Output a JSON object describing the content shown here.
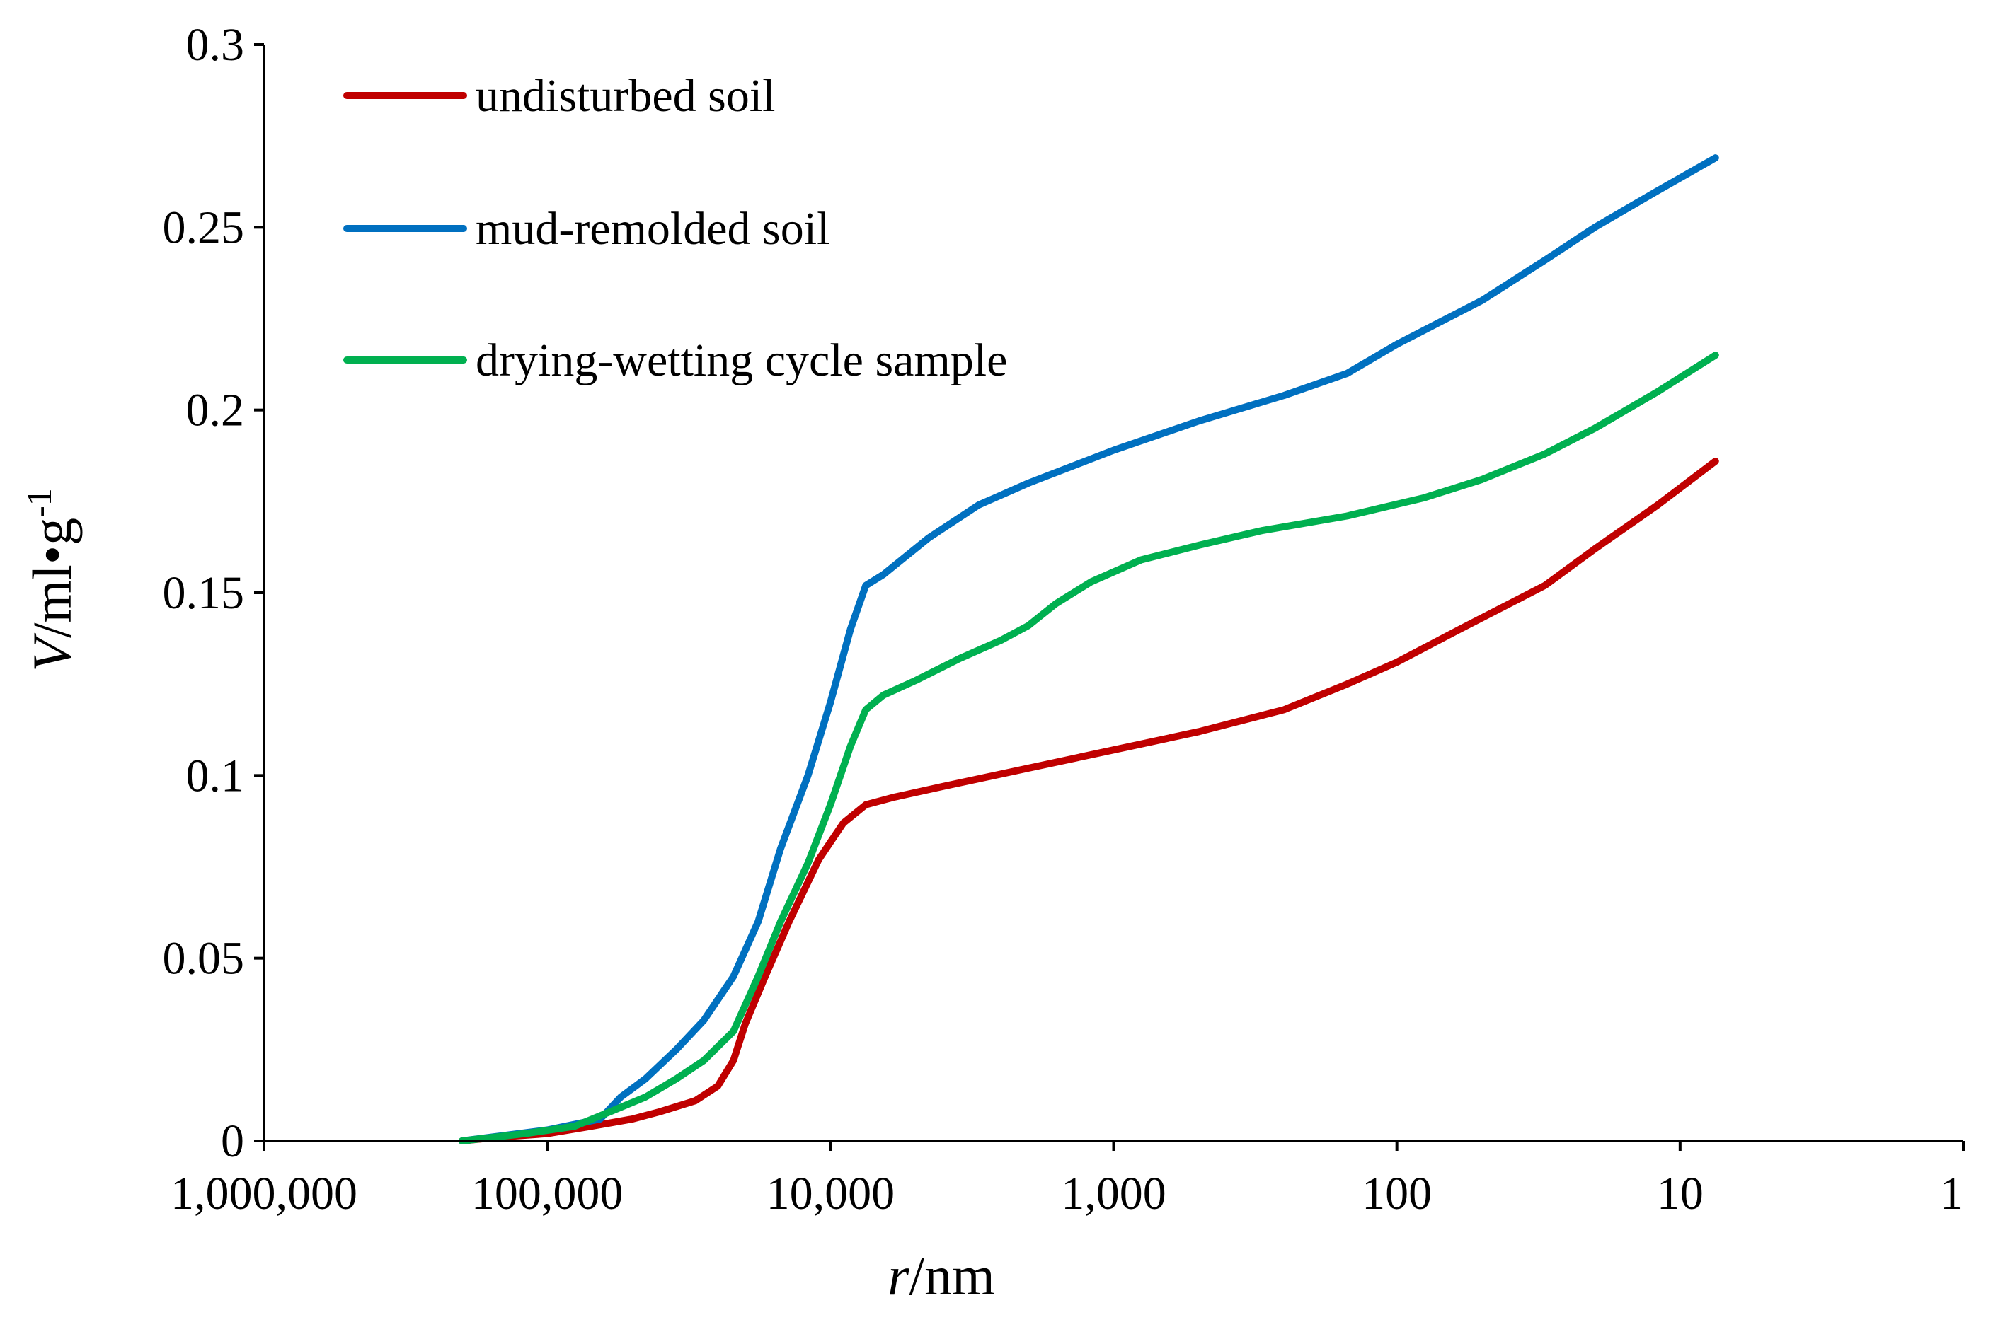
{
  "chart_data": {
    "type": "line",
    "title": "",
    "xlabel": {
      "italic": "r",
      "rest": "/nm"
    },
    "ylabel": {
      "italic": "V",
      "rest": "/ml•g",
      "sup": "-1"
    },
    "x_scale": "log",
    "x_reversed": true,
    "xlim": [
      1000000,
      1
    ],
    "ylim": [
      0,
      0.3
    ],
    "x_ticks": [
      {
        "value": 1000000,
        "label": "1,000,000"
      },
      {
        "value": 100000,
        "label": "100,000"
      },
      {
        "value": 10000,
        "label": "10,000"
      },
      {
        "value": 1000,
        "label": "1,000"
      },
      {
        "value": 100,
        "label": "100"
      },
      {
        "value": 10,
        "label": "10"
      },
      {
        "value": 1,
        "label": "1"
      }
    ],
    "y_ticks": [
      {
        "value": 0,
        "label": "0"
      },
      {
        "value": 0.05,
        "label": "0.05"
      },
      {
        "value": 0.1,
        "label": "0.1"
      },
      {
        "value": 0.15,
        "label": "0.15"
      },
      {
        "value": 0.2,
        "label": "0.2"
      },
      {
        "value": 0.25,
        "label": "0.25"
      },
      {
        "value": 0.3,
        "label": "0.3"
      }
    ],
    "grid": false,
    "legend_position": "top-left",
    "series": [
      {
        "name": "undisturbed soil",
        "color": "#C00000",
        "points": [
          [
            200000,
            0
          ],
          [
            150000,
            0.001
          ],
          [
            100000,
            0.002
          ],
          [
            70000,
            0.004
          ],
          [
            50000,
            0.006
          ],
          [
            40000,
            0.008
          ],
          [
            30000,
            0.011
          ],
          [
            25000,
            0.015
          ],
          [
            22000,
            0.022
          ],
          [
            20000,
            0.032
          ],
          [
            17000,
            0.045
          ],
          [
            14000,
            0.06
          ],
          [
            11000,
            0.077
          ],
          [
            9000,
            0.087
          ],
          [
            7500,
            0.092
          ],
          [
            6000,
            0.094
          ],
          [
            4000,
            0.097
          ],
          [
            2000,
            0.102
          ],
          [
            1000,
            0.107
          ],
          [
            500,
            0.112
          ],
          [
            250,
            0.118
          ],
          [
            150,
            0.125
          ],
          [
            100,
            0.131
          ],
          [
            60,
            0.14
          ],
          [
            30,
            0.152
          ],
          [
            20,
            0.162
          ],
          [
            12,
            0.174
          ],
          [
            7.5,
            0.186
          ]
        ]
      },
      {
        "name": "mud-remolded soil",
        "color": "#0070C0",
        "points": [
          [
            200000,
            0
          ],
          [
            100000,
            0.003
          ],
          [
            65000,
            0.006
          ],
          [
            55000,
            0.012
          ],
          [
            45000,
            0.017
          ],
          [
            35000,
            0.025
          ],
          [
            28000,
            0.033
          ],
          [
            22000,
            0.045
          ],
          [
            18000,
            0.06
          ],
          [
            15000,
            0.08
          ],
          [
            12000,
            0.1
          ],
          [
            10000,
            0.12
          ],
          [
            8500,
            0.14
          ],
          [
            7500,
            0.152
          ],
          [
            6500,
            0.155
          ],
          [
            4500,
            0.165
          ],
          [
            3000,
            0.174
          ],
          [
            2000,
            0.18
          ],
          [
            1000,
            0.189
          ],
          [
            500,
            0.197
          ],
          [
            250,
            0.204
          ],
          [
            150,
            0.21
          ],
          [
            100,
            0.218
          ],
          [
            50,
            0.23
          ],
          [
            30,
            0.241
          ],
          [
            20,
            0.25
          ],
          [
            12,
            0.26
          ],
          [
            7.5,
            0.269
          ]
        ]
      },
      {
        "name": "drying-wetting cycle sample",
        "color": "#00B050",
        "points": [
          [
            200000,
            0
          ],
          [
            120000,
            0.002
          ],
          [
            80000,
            0.004
          ],
          [
            60000,
            0.008
          ],
          [
            45000,
            0.012
          ],
          [
            35000,
            0.017
          ],
          [
            28000,
            0.022
          ],
          [
            22000,
            0.03
          ],
          [
            18000,
            0.045
          ],
          [
            15000,
            0.06
          ],
          [
            12000,
            0.076
          ],
          [
            10000,
            0.092
          ],
          [
            8500,
            0.108
          ],
          [
            7500,
            0.118
          ],
          [
            6500,
            0.122
          ],
          [
            5000,
            0.126
          ],
          [
            3500,
            0.132
          ],
          [
            2500,
            0.137
          ],
          [
            2000,
            0.141
          ],
          [
            1600,
            0.147
          ],
          [
            1200,
            0.153
          ],
          [
            800,
            0.159
          ],
          [
            500,
            0.163
          ],
          [
            300,
            0.167
          ],
          [
            150,
            0.171
          ],
          [
            80,
            0.176
          ],
          [
            50,
            0.181
          ],
          [
            30,
            0.188
          ],
          [
            20,
            0.195
          ],
          [
            12,
            0.205
          ],
          [
            7.5,
            0.215
          ]
        ]
      }
    ]
  }
}
